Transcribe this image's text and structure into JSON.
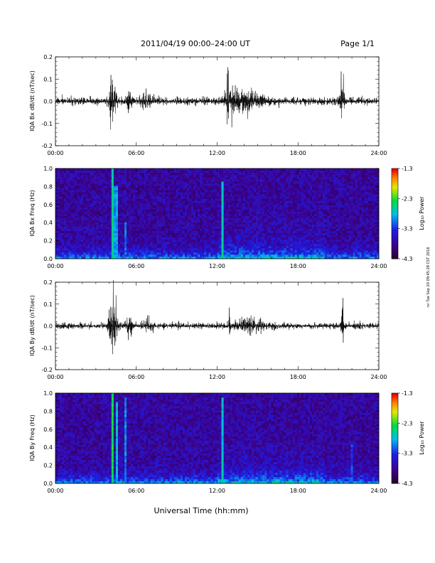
{
  "header": {
    "title": "2011/04/19   00:00–24:00 UT",
    "page": "Page 1/1",
    "side_stamp": "rvi Tue Sep 20 09:45:28 CST 2016"
  },
  "xlabel": "Universal Time (hh:mm)",
  "colorbar": {
    "label": "Log₁₀ Power"
  },
  "chart_data": [
    {
      "type": "line",
      "ylabel": "IQA Bx dB/dt (nT/sec)",
      "xlim": [
        0,
        24
      ],
      "ylim": [
        -0.2,
        0.2
      ],
      "x_ticks": [
        "00:00",
        "06:00",
        "12:00",
        "18:00",
        "24:00"
      ],
      "y_ticks": [
        "0.2",
        "0.1",
        "0.0",
        "-0.1",
        "-0.2"
      ],
      "series": [
        {
          "baseline_noise": 0.03,
          "events": [
            {
              "t": 4.25,
              "amp": 0.18,
              "width": 0.25
            },
            {
              "t": 5.5,
              "amp": 0.07,
              "width": 0.2
            },
            {
              "t": 6.8,
              "amp": 0.05,
              "width": 0.4
            },
            {
              "t": 12.8,
              "amp": 0.21,
              "width": 0.05
            },
            {
              "t": 13.2,
              "amp": 0.12,
              "width": 0.5
            },
            {
              "t": 14.5,
              "amp": 0.06,
              "width": 1.0
            },
            {
              "t": 21.3,
              "amp": 0.17,
              "width": 0.15
            }
          ]
        }
      ]
    },
    {
      "type": "heatmap",
      "ylabel": "IQA Bx Freq (Hz)",
      "xlim": [
        0,
        24
      ],
      "ylim": [
        0.0,
        1.0
      ],
      "x_ticks": [
        "00:00",
        "06:00",
        "12:00",
        "18:00",
        "24:00"
      ],
      "y_ticks": [
        "1.0",
        "0.8",
        "0.6",
        "0.4",
        "0.2",
        "0.0"
      ],
      "color_range": [
        -4.3,
        -1.3
      ],
      "colorbar_ticks": [
        "-1.3",
        "-2.3",
        "-3.3",
        "-4.3"
      ],
      "features": [
        {
          "t": 4.2,
          "fmax": 1.0,
          "level": -2.6
        },
        {
          "t": 4.5,
          "fmax": 0.8,
          "level": -2.9
        },
        {
          "t": 5.2,
          "fmax": 0.4,
          "level": -3.1
        },
        {
          "t": 12.4,
          "fmax": 0.85,
          "level": -2.7
        }
      ]
    },
    {
      "type": "line",
      "ylabel": "IQA By dB/dt (nT/sec)",
      "xlim": [
        0,
        24
      ],
      "ylim": [
        -0.2,
        0.2
      ],
      "x_ticks": [
        "00:00",
        "06:00",
        "12:00",
        "18:00",
        "24:00"
      ],
      "y_ticks": [
        "0.2",
        "0.1",
        "0.0",
        "-0.1",
        "-0.2"
      ],
      "series": [
        {
          "baseline_noise": 0.025,
          "events": [
            {
              "t": 4.3,
              "amp": 0.21,
              "width": 0.3
            },
            {
              "t": 5.5,
              "amp": 0.08,
              "width": 0.2
            },
            {
              "t": 6.8,
              "amp": 0.04,
              "width": 0.4
            },
            {
              "t": 12.9,
              "amp": 0.21,
              "width": 0.05
            },
            {
              "t": 14.5,
              "amp": 0.04,
              "width": 1.0
            },
            {
              "t": 21.3,
              "amp": 0.21,
              "width": 0.07
            }
          ]
        }
      ]
    },
    {
      "type": "heatmap",
      "ylabel": "IQA By Freq (Hz)",
      "xlim": [
        0,
        24
      ],
      "ylim": [
        0.0,
        1.0
      ],
      "x_ticks": [
        "00:00",
        "06:00",
        "12:00",
        "18:00",
        "24:00"
      ],
      "y_ticks": [
        "1.0",
        "0.8",
        "0.6",
        "0.4",
        "0.2",
        "0.0"
      ],
      "color_range": [
        -4.3,
        -1.3
      ],
      "colorbar_ticks": [
        "-1.3",
        "-2.3",
        "-3.3",
        "-4.3"
      ],
      "features": [
        {
          "t": 4.25,
          "fmax": 1.0,
          "level": -2.4
        },
        {
          "t": 4.55,
          "fmax": 0.9,
          "level": -2.8
        },
        {
          "t": 5.2,
          "fmax": 0.95,
          "level": -3.0
        },
        {
          "t": 12.4,
          "fmax": 0.95,
          "level": -2.8
        },
        {
          "t": 22.0,
          "fmax": 0.45,
          "level": -3.2
        }
      ]
    }
  ]
}
